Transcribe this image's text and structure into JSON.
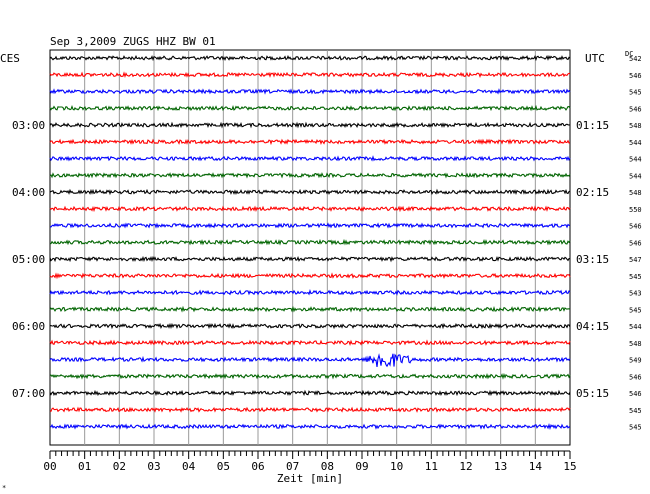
{
  "header": {
    "title": "Sep 3,2009   ZUGS HHZ BW 01",
    "left_tz": "CES",
    "right_tz": "UTC",
    "dc_label": "DC",
    "corner_mark": "*"
  },
  "chart_data": {
    "type": "line",
    "title": "Sep 3,2009   ZUGS HHZ BW 01",
    "xlabel": "Zeit [min]",
    "ylabel": "",
    "xlim": [
      0,
      15
    ],
    "x_ticks": [
      "00",
      "01",
      "02",
      "03",
      "04",
      "05",
      "06",
      "07",
      "08",
      "09",
      "10",
      "11",
      "12",
      "13",
      "14",
      "15"
    ],
    "grid": true,
    "colors": [
      "#000000",
      "#ff0000",
      "#0000ff",
      "#006400"
    ],
    "left_time_labels": [
      {
        "trace": 4,
        "label": "03:00"
      },
      {
        "trace": 8,
        "label": "04:00"
      },
      {
        "trace": 12,
        "label": "05:00"
      },
      {
        "trace": 16,
        "label": "06:00"
      },
      {
        "trace": 20,
        "label": "07:00"
      }
    ],
    "right_time_labels": [
      {
        "trace": 4,
        "label": "01:15"
      },
      {
        "trace": 8,
        "label": "02:15"
      },
      {
        "trace": 12,
        "label": "03:15"
      },
      {
        "trace": 16,
        "label": "04:15"
      },
      {
        "trace": 20,
        "label": "05:15"
      }
    ],
    "dc_offsets": [
      "542",
      "546",
      "545",
      "546",
      "548",
      "544",
      "544",
      "544",
      "548",
      "550",
      "546",
      "546",
      "547",
      "545",
      "543",
      "545",
      "544",
      "548",
      "549",
      "546",
      "546",
      "545",
      "545"
    ],
    "events": [
      {
        "trace": 18,
        "start_min": 9.1,
        "end_min": 10.5,
        "peak_min": 9.6
      }
    ]
  }
}
